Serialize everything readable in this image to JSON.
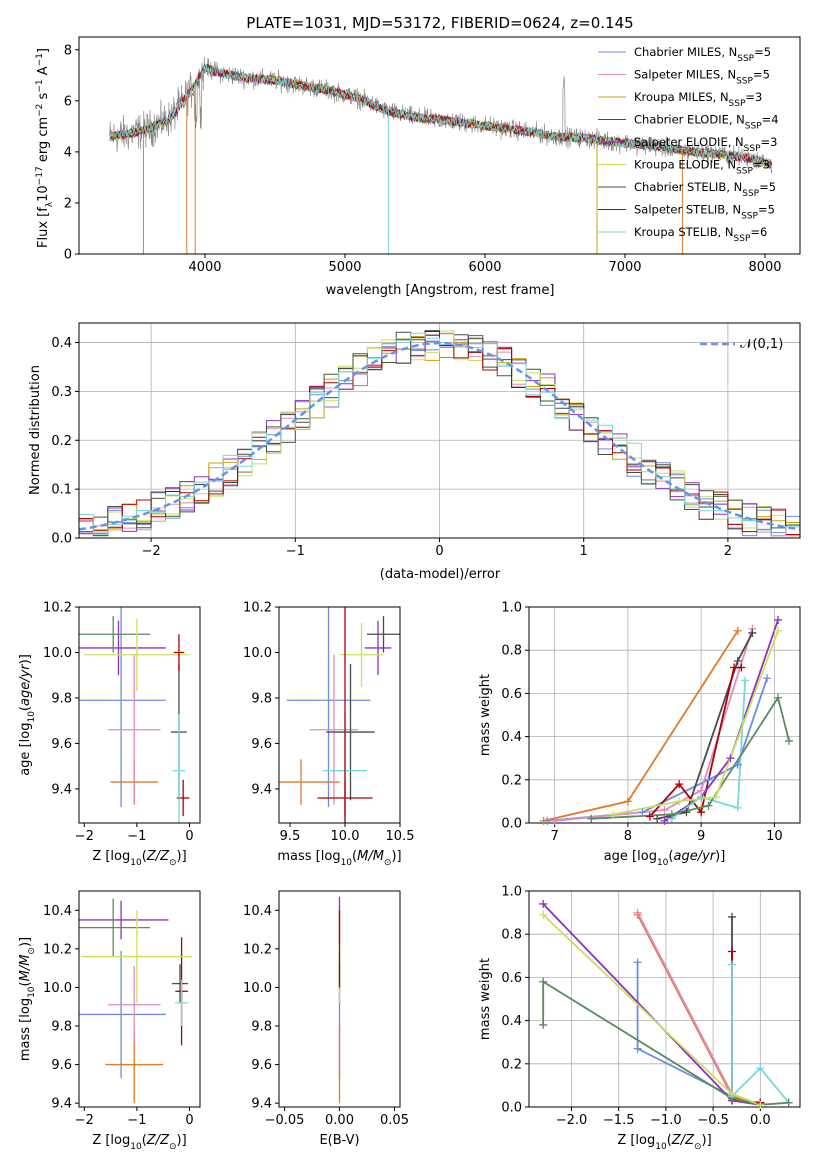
{
  "colors": {
    "grid": "#b0b0b0",
    "series": [
      "#6b8ee0",
      "#e08cc0",
      "#c9a300",
      "#4a4a4a",
      "#9030c0",
      "#c8e060",
      "#3a5a3a",
      "#b00000",
      "#7ad8d8"
    ],
    "normal": "#6495ed",
    "pop": [
      "#6b8ee0",
      "#e07a2a",
      "#e08cc0",
      "#4a4a4a",
      "#b00000",
      "#9030c0",
      "#7ad8d8",
      "#5a8a60",
      "#c8e060"
    ]
  },
  "chart_data": [
    {
      "type": "line",
      "title": "PLATE=1031, MJD=53172, FIBERID=0624, z=0.145",
      "xlabel": "wavelength [Angstrom, rest frame]",
      "ylabel": "Flux [f_λ 10^-17 erg cm^-2 s^-1 A^-1]",
      "xlim": [
        3100,
        8250
      ],
      "ylim": [
        0,
        8.5
      ],
      "xticks": [
        4000,
        5000,
        6000,
        7000,
        8000
      ],
      "yticks": [
        0,
        2,
        4,
        6,
        8
      ],
      "legend_position": "top-right",
      "legend": [
        "Chabrier MILES, N_SSP=5",
        "Salpeter MILES, N_SSP=5",
        "Kroupa MILES, N_SSP=3",
        "Chabrier ELODIE, N_SSP=4",
        "Salpeter ELODIE, N_SSP=3",
        "Kroupa ELODIE, N_SSP=3",
        "Chabrier STELIB, N_SSP=5",
        "Salpeter STELIB, N_SSP=5",
        "Kroupa STELIB, N_SSP=6"
      ],
      "continuum": {
        "x": [
          3320,
          3450,
          3600,
          3750,
          3900,
          4000,
          4100,
          4300,
          4500,
          4700,
          4900,
          5100,
          5300,
          5500,
          5700,
          5900,
          6100,
          6300,
          6500,
          6700,
          6900,
          7100,
          7300,
          7500,
          7700,
          7900,
          8050
        ],
        "y": [
          4.6,
          4.7,
          4.9,
          5.3,
          6.4,
          7.3,
          7.1,
          6.9,
          6.8,
          6.6,
          6.4,
          6.1,
          5.6,
          5.35,
          5.25,
          5.1,
          4.95,
          4.8,
          4.6,
          4.55,
          4.4,
          4.3,
          4.15,
          4.0,
          3.9,
          3.75,
          3.5
        ]
      }
    },
    {
      "type": "bar",
      "xlabel": "(data-model)/error",
      "ylabel": "Normed distribution",
      "xlim": [
        -2.5,
        2.5
      ],
      "ylim": [
        0,
        0.44
      ],
      "xticks": [
        -2,
        -1,
        0,
        1,
        2
      ],
      "yticks": [
        0.0,
        0.1,
        0.2,
        0.3,
        0.4
      ],
      "legend": [
        "N(0,1)"
      ],
      "bin_width": 0.1,
      "series_base": "normal density N(0,1) with per-model scatter"
    },
    {
      "type": "scatter",
      "xlabel": "Z [log10(Z/Z⊙)]",
      "ylabel": "age  [log10(age/yr)]",
      "xlim": [
        -2.1,
        0.2
      ],
      "ylim": [
        9.25,
        10.2
      ],
      "xticks": [
        -2,
        -1,
        0
      ],
      "yticks": [
        9.4,
        9.6,
        9.8,
        10.0,
        10.2
      ],
      "points": [
        {
          "x": -1.3,
          "xerr": 0.85,
          "y": 9.79,
          "yerr": 0.47,
          "c": 0
        },
        {
          "x": -1.05,
          "xerr": 0.45,
          "y": 9.43,
          "yerr": 0.1,
          "c": 1
        },
        {
          "x": -1.05,
          "xerr": 0.5,
          "y": 9.66,
          "yerr": 0.33,
          "c": 2
        },
        {
          "x": -0.2,
          "xerr": 0.15,
          "y": 9.65,
          "yerr": 0.3,
          "c": 3
        },
        {
          "x": -0.12,
          "xerr": 0.12,
          "y": 9.36,
          "yerr": 0.08,
          "c": 4
        },
        {
          "x": -1.35,
          "xerr": 0.9,
          "y": 10.02,
          "yerr": 0.12,
          "c": 5
        },
        {
          "x": -0.2,
          "xerr": 0.12,
          "y": 9.48,
          "yerr": 0.25,
          "c": 6
        },
        {
          "x": -1.45,
          "xerr": 0.7,
          "y": 10.08,
          "yerr": 0.08,
          "c": 7
        },
        {
          "x": -1.0,
          "xerr": 1.0,
          "y": 9.99,
          "yerr": 0.16,
          "c": 8
        },
        {
          "x": -0.2,
          "xerr": 0.1,
          "y": 10.0,
          "yerr": 0.08,
          "c": 4
        }
      ]
    },
    {
      "type": "scatter",
      "xlabel": "mass [log10(M/M⊙)]",
      "ylabel": "",
      "xlim": [
        9.4,
        10.5
      ],
      "ylim": [
        9.25,
        10.2
      ],
      "xticks": [
        9.5,
        10.0,
        10.5
      ],
      "yticks": [
        9.4,
        9.6,
        9.8,
        10.0,
        10.2
      ],
      "points": [
        {
          "x": 9.85,
          "xerr": 0.38,
          "y": 9.79,
          "yerr": 0.47,
          "c": 0
        },
        {
          "x": 9.6,
          "xerr": 0.35,
          "y": 9.43,
          "yerr": 0.1,
          "c": 1
        },
        {
          "x": 9.9,
          "xerr": 0.22,
          "y": 9.66,
          "yerr": 0.33,
          "c": 2
        },
        {
          "x": 10.05,
          "xerr": 0.22,
          "y": 9.65,
          "yerr": 0.3,
          "c": 3
        },
        {
          "x": 10.0,
          "xerr": 0.25,
          "y": 9.36,
          "yerr": 0.08,
          "c": 4
        },
        {
          "x": 10.3,
          "xerr": 0.12,
          "y": 10.02,
          "yerr": 0.12,
          "c": 5
        },
        {
          "x": 10.0,
          "xerr": 0.2,
          "y": 9.48,
          "yerr": 0.25,
          "c": 6
        },
        {
          "x": 10.35,
          "xerr": 0.15,
          "y": 10.08,
          "yerr": 0.08,
          "c": 3
        },
        {
          "x": 10.15,
          "xerr": 0.2,
          "y": 9.99,
          "yerr": 0.14,
          "c": 8
        },
        {
          "x": 10.0,
          "xerr": 0.0,
          "y": 9.8,
          "yerr": 0.55,
          "c": 4
        }
      ]
    },
    {
      "type": "line",
      "xlabel": "age  [log10(age/yr)]",
      "ylabel": "mass weight",
      "xlim": [
        6.65,
        10.35
      ],
      "ylim": [
        0,
        1
      ],
      "xticks": [
        7,
        8,
        9,
        10
      ],
      "yticks": [
        0.0,
        0.2,
        0.4,
        0.6,
        0.8,
        1.0
      ],
      "series": [
        {
          "c": 0,
          "x": [
            6.9,
            8.2,
            9.1,
            9.5,
            9.9
          ],
          "y": [
            0.01,
            0.05,
            0.2,
            0.27,
            0.67
          ]
        },
        {
          "c": 1,
          "x": [
            6.85,
            8.0,
            9.5
          ],
          "y": [
            0.01,
            0.1,
            0.89
          ]
        },
        {
          "c": 2,
          "x": [
            7.0,
            8.5,
            9.0,
            9.7
          ],
          "y": [
            0.01,
            0.06,
            0.15,
            0.9
          ]
        },
        {
          "c": 3,
          "x": [
            8.4,
            8.8,
            9.5,
            9.7
          ],
          "y": [
            0.02,
            0.05,
            0.75,
            0.88
          ]
        },
        {
          "c": 4,
          "x": [
            8.3,
            8.7,
            9.0,
            9.45,
            9.55
          ],
          "y": [
            0.03,
            0.18,
            0.05,
            0.72,
            0.72
          ]
        },
        {
          "c": 5,
          "x": [
            8.5,
            9.0,
            9.4,
            10.05
          ],
          "y": [
            0.01,
            0.12,
            0.3,
            0.94
          ]
        },
        {
          "c": 6,
          "x": [
            8.6,
            9.0,
            9.5,
            9.6
          ],
          "y": [
            0.02,
            0.12,
            0.07,
            0.66
          ]
        },
        {
          "c": 7,
          "x": [
            7.5,
            8.6,
            9.1,
            10.05,
            10.2
          ],
          "y": [
            0.02,
            0.04,
            0.08,
            0.58,
            0.38
          ]
        },
        {
          "c": 8,
          "x": [
            7.8,
            8.7,
            9.2,
            10.05
          ],
          "y": [
            0.04,
            0.1,
            0.12,
            0.89
          ]
        }
      ]
    },
    {
      "type": "scatter",
      "xlabel": "Z [log10(Z/Z⊙)]",
      "ylabel": "mass [log10(M/M⊙)]",
      "xlim": [
        -2.1,
        0.2
      ],
      "ylim": [
        9.38,
        10.5
      ],
      "xticks": [
        -2,
        -1,
        0
      ],
      "yticks": [
        9.4,
        9.6,
        9.8,
        10.0,
        10.2,
        10.4
      ],
      "points": [
        {
          "x": -1.3,
          "xerr": 0.85,
          "y": 9.86,
          "yerr": 0.33,
          "c": 0
        },
        {
          "x": -1.05,
          "xerr": 0.55,
          "y": 9.6,
          "yerr": 0.2,
          "c": 1
        },
        {
          "x": -1.05,
          "xerr": 0.5,
          "y": 9.91,
          "yerr": 0.2,
          "c": 2
        },
        {
          "x": -0.18,
          "xerr": 0.15,
          "y": 10.02,
          "yerr": 0.1,
          "c": 3
        },
        {
          "x": -0.15,
          "xerr": 0.12,
          "y": 9.98,
          "yerr": 0.28,
          "c": 4
        },
        {
          "x": -1.3,
          "xerr": 0.9,
          "y": 10.35,
          "yerr": 0.1,
          "c": 5
        },
        {
          "x": -0.15,
          "xerr": 0.12,
          "y": 9.92,
          "yerr": 0.12,
          "c": 6
        },
        {
          "x": -1.45,
          "xerr": 0.7,
          "y": 10.31,
          "yerr": 0.15,
          "c": 7
        },
        {
          "x": -1.0,
          "xerr": 1.05,
          "y": 10.16,
          "yerr": 0.24,
          "c": 8
        }
      ]
    },
    {
      "type": "scatter",
      "xlabel": "E(B-V)",
      "ylabel": "",
      "xlim": [
        -0.055,
        0.055
      ],
      "ylim": [
        9.38,
        10.5
      ],
      "xticks": [
        -0.05,
        0.0,
        0.05
      ],
      "yticks": [
        9.4,
        9.6,
        9.8,
        10.0,
        10.2,
        10.4
      ],
      "points": [
        {
          "x": 0.0,
          "y": 9.86,
          "yerr": 0.33,
          "c": 0
        },
        {
          "x": 0.0,
          "y": 9.6,
          "yerr": 0.2,
          "c": 1
        },
        {
          "x": 0.0,
          "y": 10.02,
          "yerr": 0.1,
          "c": 3
        },
        {
          "x": 0.0,
          "y": 10.35,
          "yerr": 0.12,
          "c": 5
        },
        {
          "x": 0.0,
          "y": 10.16,
          "yerr": 0.24,
          "c": 8
        },
        {
          "x": 0.0,
          "y": 10.2,
          "yerr": 0.2,
          "c": 4
        }
      ]
    },
    {
      "type": "line",
      "xlabel": "Z [log10(Z/Z⊙)]",
      "ylabel": "mass weight",
      "xlim": [
        -2.45,
        0.42
      ],
      "ylim": [
        0,
        1
      ],
      "xticks": [
        -2.0,
        -1.5,
        -1.0,
        -0.5,
        0.0
      ],
      "yticks": [
        0.0,
        0.2,
        0.4,
        0.6,
        0.8,
        1.0
      ],
      "series": [
        {
          "c": 0,
          "x": [
            -1.3,
            -1.3,
            -0.3,
            0.0
          ],
          "y": [
            0.67,
            0.27,
            0.05,
            0.01
          ]
        },
        {
          "c": 1,
          "x": [
            -1.3,
            -0.3,
            0.0
          ],
          "y": [
            0.89,
            0.05,
            0.01
          ]
        },
        {
          "c": 2,
          "x": [
            -1.3,
            -0.3,
            0.0
          ],
          "y": [
            0.9,
            0.06,
            0.01
          ]
        },
        {
          "c": 3,
          "x": [
            -0.3,
            -0.3,
            0.0
          ],
          "y": [
            0.88,
            0.03,
            0.02
          ]
        },
        {
          "c": 4,
          "x": [
            -0.3,
            -0.3,
            0.0
          ],
          "y": [
            0.72,
            0.03,
            0.02
          ]
        },
        {
          "c": 5,
          "x": [
            -2.3,
            -0.3,
            0.0
          ],
          "y": [
            0.94,
            0.03,
            0.01
          ]
        },
        {
          "c": 6,
          "x": [
            -0.3,
            -0.3,
            0.0,
            0.3
          ],
          "y": [
            0.66,
            0.05,
            0.18,
            0.02
          ]
        },
        {
          "c": 7,
          "x": [
            -2.3,
            -2.3,
            -0.3,
            0.0,
            0.3
          ],
          "y": [
            0.38,
            0.58,
            0.04,
            0.01,
            0.02
          ]
        },
        {
          "c": 8,
          "x": [
            -2.3,
            -0.3,
            0.0
          ],
          "y": [
            0.89,
            0.06,
            0.01
          ]
        }
      ]
    }
  ]
}
